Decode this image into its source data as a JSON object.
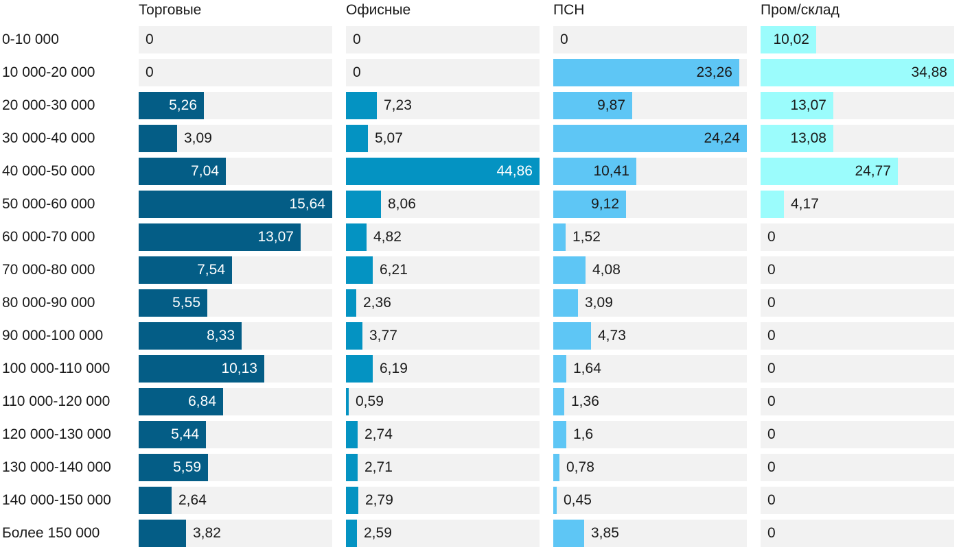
{
  "chart_data": {
    "type": "bar",
    "orientation": "horizontal",
    "layout": "small-multiples",
    "categories": [
      "0-10 000",
      "10 000-20 000",
      "20 000-30 000",
      "30 000-40 000",
      "40 000-50 000",
      "50 000-60 000",
      "60 000-70 000",
      "70 000-80 000",
      "80 000-90 000",
      "90 000-100 000",
      "100 000-110 000",
      "110 000-120 000",
      "120 000-130 000",
      "130 000-140 000",
      "140 000-150 000",
      "Более 150 000"
    ],
    "series": [
      {
        "name": "Торговые",
        "color": "#045d86",
        "max": 15.64,
        "values": [
          0,
          0,
          5.26,
          3.09,
          7.04,
          15.64,
          13.07,
          7.54,
          5.55,
          8.33,
          10.13,
          6.84,
          5.44,
          5.59,
          2.64,
          3.82
        ],
        "labels": [
          "0",
          "0",
          "5,26",
          "3,09",
          "7,04",
          "15,64",
          "13,07",
          "7,54",
          "5,55",
          "8,33",
          "10,13",
          "6,84",
          "5,44",
          "5,59",
          "2,64",
          "3,82"
        ]
      },
      {
        "name": "Офисные",
        "color": "#0493c2",
        "max": 44.86,
        "values": [
          0,
          0,
          7.23,
          5.07,
          44.86,
          8.06,
          4.82,
          6.21,
          2.36,
          3.77,
          6.19,
          0.59,
          2.74,
          2.71,
          2.79,
          2.59
        ],
        "labels": [
          "0",
          "0",
          "7,23",
          "5,07",
          "44,86",
          "8,06",
          "4,82",
          "6,21",
          "2,36",
          "3,77",
          "6,19",
          "0,59",
          "2,74",
          "2,71",
          "2,79",
          "2,59"
        ]
      },
      {
        "name": "ПСН",
        "color": "#5ec6f5",
        "max": 24.24,
        "values": [
          0,
          23.26,
          9.87,
          24.24,
          10.41,
          9.12,
          1.52,
          4.08,
          3.09,
          4.73,
          1.64,
          1.36,
          1.6,
          0.78,
          0.45,
          3.85
        ],
        "labels": [
          "0",
          "23,26",
          "9,87",
          "24,24",
          "10,41",
          "9,12",
          "1,52",
          "4,08",
          "3,09",
          "4,73",
          "1,64",
          "1,36",
          "1,6",
          "0,78",
          "0,45",
          "3,85"
        ]
      },
      {
        "name": "Пром/склад",
        "color": "#9bfcfc",
        "max": 34.88,
        "values": [
          10.02,
          34.88,
          13.07,
          13.08,
          24.77,
          4.17,
          0,
          0,
          0,
          0,
          0,
          0,
          0,
          0,
          0,
          0
        ],
        "labels": [
          "10,02",
          "34,88",
          "13,07",
          "13,08",
          "24,77",
          "4,17",
          "0",
          "0",
          "0",
          "0",
          "0",
          "0",
          "0",
          "0",
          "0",
          "0"
        ]
      }
    ],
    "title": "",
    "xlabel": "",
    "ylabel": "",
    "grid": false,
    "legend": "none"
  }
}
